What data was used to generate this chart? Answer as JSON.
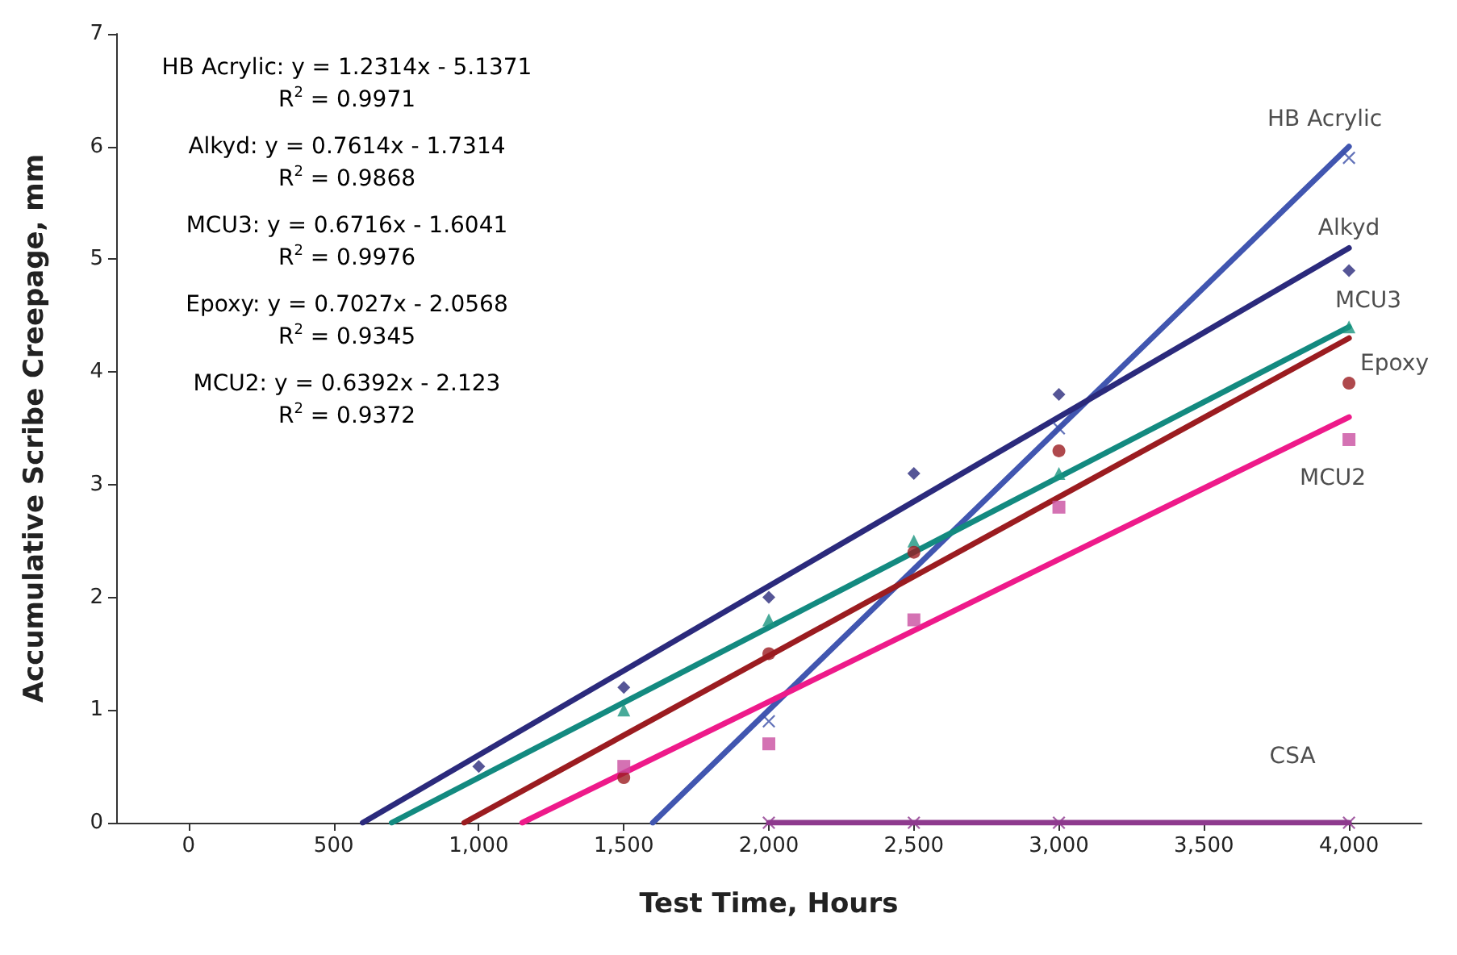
{
  "chart_data": {
    "type": "scatter",
    "xlabel": "Test Time, Hours",
    "ylabel": "Accumulative Scribe Creepage, mm",
    "xlim": [
      -250,
      4250
    ],
    "xticks": [
      {
        "value": 0,
        "label": "0"
      },
      {
        "value": 500,
        "label": "500"
      },
      {
        "value": 1000,
        "label": "1,000"
      },
      {
        "value": 1500,
        "label": "1,500"
      },
      {
        "value": 2000,
        "label": "2,000"
      },
      {
        "value": 2500,
        "label": "2,500"
      },
      {
        "value": 3000,
        "label": "3,000"
      },
      {
        "value": 3500,
        "label": "3,500"
      },
      {
        "value": 4000,
        "label": "4,000"
      }
    ],
    "ylim": [
      0,
      7
    ],
    "yticks": [
      0,
      1,
      2,
      3,
      4,
      5,
      6,
      7
    ],
    "grid": false,
    "legend": false,
    "series": [
      {
        "name": "HB Acrylic",
        "marker": "cross",
        "color": "#3b4fa8",
        "x": [
          2000,
          2500,
          3000,
          4000
        ],
        "values": [
          0.9,
          null,
          3.5,
          5.9
        ]
      },
      {
        "name": "Alkyd",
        "marker": "diamond",
        "color": "#2b2a7c",
        "x": [
          1000,
          1500,
          2000,
          2500,
          3000,
          4000
        ],
        "values": [
          0.5,
          1.2,
          2.0,
          3.1,
          3.8,
          4.9
        ]
      },
      {
        "name": "MCU3",
        "marker": "triangle",
        "color": "#1a9580",
        "x": [
          1500,
          2000,
          2500,
          3000,
          4000
        ],
        "values": [
          1.0,
          1.8,
          2.5,
          3.1,
          4.4
        ]
      },
      {
        "name": "Epoxy",
        "marker": "circle",
        "color": "#9b1c20",
        "x": [
          1500,
          2000,
          2500,
          3000,
          4000
        ],
        "values": [
          0.4,
          1.5,
          2.4,
          3.3,
          3.9
        ]
      },
      {
        "name": "MCU2",
        "marker": "square",
        "color": "#c94fa0",
        "x": [
          1500,
          2000,
          2500,
          3000,
          4000
        ],
        "values": [
          0.5,
          0.7,
          1.8,
          2.8,
          3.4
        ]
      },
      {
        "name": "CSA",
        "marker": "cross",
        "color": "#8e3a8e",
        "x": [
          2000,
          2500,
          3000,
          4000
        ],
        "values": [
          0,
          0,
          0,
          0
        ]
      },
      {
        "type": "line",
        "color": "#4156b0",
        "x": [
          1600,
          4000
        ],
        "values": [
          0,
          6.0
        ]
      },
      {
        "type": "line",
        "color": "#2b2a7c",
        "x": [
          600,
          4000
        ],
        "values": [
          0,
          5.1
        ]
      },
      {
        "type": "line",
        "color": "#138a80",
        "x": [
          700,
          4000
        ],
        "values": [
          0,
          4.4
        ]
      },
      {
        "type": "line",
        "color": "#9b1c20",
        "x": [
          950,
          4000
        ],
        "values": [
          0,
          4.3
        ]
      },
      {
        "type": "line",
        "color": "#ee1a8a",
        "x": [
          1150,
          4000
        ],
        "values": [
          0,
          3.6
        ]
      },
      {
        "type": "line",
        "color": "#8e3a8e",
        "x": [
          2000,
          4000
        ],
        "values": [
          0,
          0
        ]
      }
    ],
    "annotations": [
      "HB Acrylic: y = 1.2314x - 5.1371",
      "R$^{2}$ = 0.9971",
      "Alkyd: y = 0.7614x - 1.7314",
      "R$^{2}$ = 0.9868",
      "MCU3: y = 0.6716x - 1.6041",
      "R$^{2}$ = 0.9976",
      "Epoxy: y = 0.7027x - 2.0568",
      "R$^{2}$ = 0.9345",
      "MCU2: y = 0.6392x - 2.123",
      "R$^{2}$ = 0.9372"
    ]
  }
}
